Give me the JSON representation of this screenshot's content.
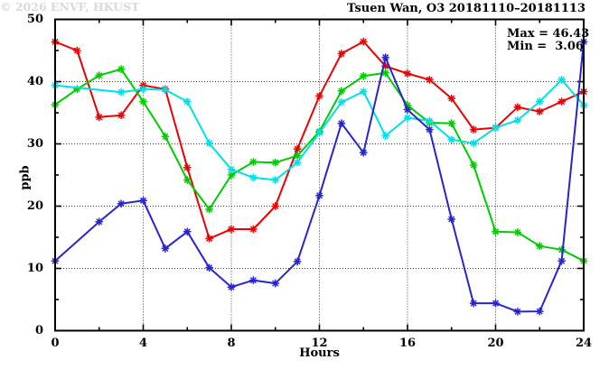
{
  "title": "Tsuen Wan, O3 20181110–20181113",
  "stats": {
    "max_label": "Max = 46.43",
    "min_label": "Min =  3.06"
  },
  "axes": {
    "ylabel": "ppb",
    "xlabel": "Hours"
  },
  "watermark": "© 2026 ENVF, HKUST",
  "chart_data": {
    "type": "line",
    "title": "Tsuen Wan, O3 20181110–20181113",
    "xlabel": "Hours",
    "ylabel": "ppb",
    "xlim": [
      0,
      24
    ],
    "ylim": [
      0,
      50
    ],
    "grid": true,
    "legend_position": "none",
    "annotations": {
      "max": 46.43,
      "min": 3.06
    },
    "x": [
      0,
      1,
      2,
      3,
      4,
      5,
      6,
      7,
      8,
      9,
      10,
      11,
      12,
      13,
      14,
      15,
      16,
      17,
      18,
      19,
      20,
      21,
      22,
      23,
      24
    ],
    "x_ticks": [
      0,
      4,
      8,
      12,
      16,
      20,
      24
    ],
    "x_tick_labels": [
      "0",
      "4",
      "8",
      "12",
      "16",
      "20",
      "24"
    ],
    "x_minor_ticks": [
      2,
      6,
      10,
      14,
      18,
      22
    ],
    "y_ticks": [
      0,
      10,
      20,
      30,
      40,
      50
    ],
    "y_tick_labels": [
      "0",
      "10",
      "20",
      "30",
      "40",
      "50"
    ],
    "y_minor_ticks": [
      5,
      15,
      25,
      35,
      45
    ],
    "marker": "asterisk",
    "series": [
      {
        "name": "day-1-red",
        "color": "#ee0000",
        "values": [
          46.4,
          45.0,
          34.3,
          34.6,
          39.4,
          38.8,
          26.2,
          14.8,
          16.3,
          16.3,
          20.0,
          29.2,
          37.7,
          44.5,
          46.43,
          42.5,
          41.3,
          40.3,
          37.3,
          32.3,
          32.6,
          35.9,
          35.2,
          36.8,
          38.4
        ]
      },
      {
        "name": "day-2-green",
        "color": "#00cc00",
        "values": [
          36.3,
          38.8,
          41.0,
          42.0,
          36.8,
          31.2,
          24.2,
          19.5,
          25.0,
          27.1,
          27.0,
          28.1,
          32.0,
          38.5,
          40.9,
          41.4,
          36.2,
          33.4,
          33.3,
          26.6,
          15.9,
          15.8,
          13.6,
          13.0,
          11.2
        ]
      },
      {
        "name": "day-3-cyan",
        "color": "#00e0e6",
        "values": [
          39.4,
          null,
          null,
          38.3,
          38.8,
          38.7,
          36.8,
          30.1,
          25.9,
          24.6,
          24.2,
          27.0,
          31.8,
          36.7,
          38.4,
          31.3,
          34.2,
          33.7,
          30.7,
          30.1,
          32.6,
          33.8,
          36.8,
          40.3,
          36.2
        ]
      },
      {
        "name": "day-4-blue",
        "color": "#2626cc",
        "values": [
          11.2,
          null,
          17.5,
          20.4,
          20.9,
          13.2,
          15.9,
          10.1,
          7.0,
          8.1,
          7.6,
          11.1,
          21.7,
          33.3,
          28.6,
          43.9,
          35.5,
          32.3,
          17.9,
          4.4,
          4.4,
          3.06,
          3.1,
          11.2,
          46.4
        ]
      }
    ]
  }
}
